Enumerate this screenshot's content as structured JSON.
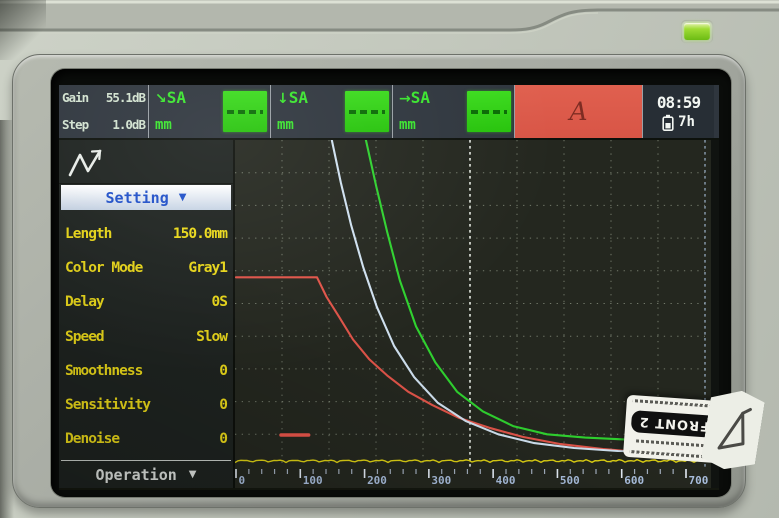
{
  "top_bar": {
    "gain": {
      "label": "Gain",
      "value": "55.1dB"
    },
    "step": {
      "label": "Step",
      "value": "1.0dB"
    },
    "gates": [
      {
        "arrow": "↘",
        "name": "SA",
        "unit": "mm"
      },
      {
        "arrow": "↓",
        "name": "SA",
        "unit": "mm"
      },
      {
        "arrow": "→",
        "name": "SA",
        "unit": "mm"
      }
    ],
    "scan_mode": "A",
    "time": "08:59",
    "battery_hours": "7h"
  },
  "sidebar": {
    "header": "Setting",
    "items": [
      {
        "label": "Length",
        "value": "150.0mm"
      },
      {
        "label": "Color Mode",
        "value": "Gray1"
      },
      {
        "label": "Delay",
        "value": "0S"
      },
      {
        "label": "Speed",
        "value": "Slow"
      },
      {
        "label": "Smoothness",
        "value": "0"
      },
      {
        "label": "Sensitivity",
        "value": "0"
      },
      {
        "label": "Denoise",
        "value": "0"
      }
    ],
    "footer": "Operation"
  },
  "sticker": {
    "text": "FRONT 2"
  },
  "chart_data": {
    "type": "line",
    "title": "",
    "xlabel": "",
    "ylabel": "",
    "x_range": [
      0,
      700
    ],
    "x_tick_labels": [
      "0",
      "100",
      "200",
      "300",
      "400",
      "500",
      "600",
      "700"
    ],
    "grid": "dotted, 10x10 divisions, bright center vertical line",
    "series": [
      {
        "name": "dac-curve-red",
        "color": "#e05449",
        "points": [
          [
            0,
            58
          ],
          [
            126,
            58
          ],
          [
            141,
            52
          ],
          [
            160,
            46
          ],
          [
            182,
            39
          ],
          [
            207,
            33
          ],
          [
            235,
            28
          ],
          [
            268,
            23
          ],
          [
            305,
            19
          ],
          [
            347,
            15
          ],
          [
            394,
            12
          ],
          [
            446,
            9.2
          ],
          [
            505,
            7
          ],
          [
            571,
            5.5
          ],
          [
            642,
            4.3
          ],
          [
            731,
            3.1
          ]
        ]
      },
      {
        "name": "dac-curve-white",
        "color": "#cfe0ef",
        "points": [
          [
            149,
            100
          ],
          [
            163,
            87
          ],
          [
            179,
            74
          ],
          [
            198,
            61
          ],
          [
            219,
            49
          ],
          [
            246,
            37
          ],
          [
            277,
            27.5
          ],
          [
            314,
            19.6
          ],
          [
            358,
            14
          ],
          [
            408,
            10
          ],
          [
            464,
            7.3
          ],
          [
            526,
            5.8
          ],
          [
            594,
            4.9
          ],
          [
            731,
            4.6
          ]
        ]
      },
      {
        "name": "dac-curve-green",
        "color": "#2fd12f",
        "points": [
          [
            202,
            100
          ],
          [
            218,
            86
          ],
          [
            235,
            72
          ],
          [
            255,
            57
          ],
          [
            280,
            43
          ],
          [
            310,
            32
          ],
          [
            344,
            23
          ],
          [
            384,
            17
          ],
          [
            431,
            12.5
          ],
          [
            484,
            10
          ],
          [
            543,
            9
          ],
          [
            620,
            8.3
          ],
          [
            731,
            8
          ]
        ]
      }
    ],
    "echo_marker": {
      "x": [
        70,
        113
      ],
      "y_pct": 9.8,
      "color": "#e8554a"
    },
    "baseline": {
      "color": "#ddd013",
      "level_pct": 1,
      "noise_pct": 1.2
    }
  }
}
